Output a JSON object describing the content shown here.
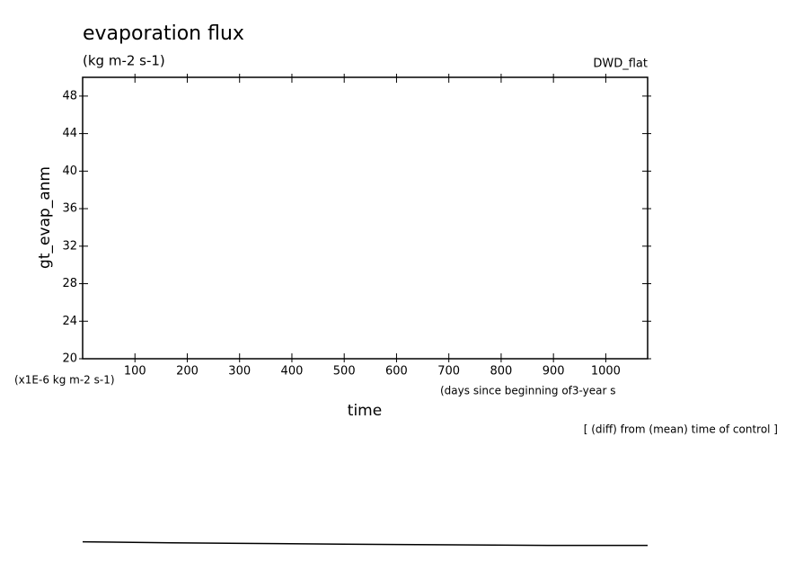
{
  "chart_data": {
    "type": "line",
    "title": "evaporation flux",
    "subtitle": "(kg m-2 s-1)",
    "run_label": "DWD_flat",
    "ylabel": "gt_evap_anm",
    "yunit": "(x1E-6 kg m-2 s-1)",
    "xlabel": "time",
    "xunit": "(days since beginning of3-year s",
    "footer": "[ (diff) from (mean) time of control ]",
    "xlim": [
      0,
      1080
    ],
    "xticks": [
      100,
      200,
      300,
      400,
      500,
      600,
      700,
      800,
      900,
      1000
    ],
    "ylim": [
      20,
      50
    ],
    "yticks": [
      20,
      24,
      28,
      32,
      36,
      40,
      44,
      48
    ],
    "x": [
      0,
      170,
      370,
      600,
      890,
      1080
    ],
    "series": [
      {
        "color": "#000000",
        "values": [
          0.48,
          0.38,
          0.29,
          0.19,
          0.1,
          0.1
        ]
      }
    ]
  }
}
